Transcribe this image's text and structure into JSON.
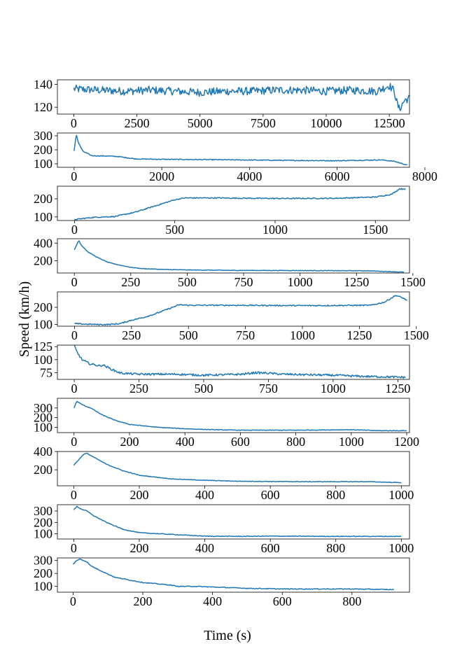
{
  "figure": {
    "xlabel": "Time (s)",
    "ylabel": "Speed (km/h)",
    "line_color": "#1f77b4"
  },
  "chart_data": [
    {
      "type": "line",
      "xlim": [
        -650,
        13300
      ],
      "ylim": [
        114,
        144
      ],
      "xticks": [
        0,
        2500,
        5000,
        7500,
        10000,
        12500
      ],
      "yticks": [
        120,
        140
      ],
      "x": [
        0,
        1000,
        2000,
        3000,
        4000,
        5000,
        6000,
        7000,
        8000,
        9000,
        10000,
        11000,
        12000,
        12500,
        12700,
        12800,
        12900,
        13000,
        13100,
        13300
      ],
      "y": [
        136,
        135,
        134,
        135,
        134,
        133,
        134,
        134,
        135,
        135,
        134,
        135,
        134,
        139,
        134,
        124,
        118,
        122,
        126,
        128
      ],
      "noise": 3.5
    },
    {
      "type": "line",
      "xlim": [
        -380,
        7650
      ],
      "ylim": [
        75,
        320
      ],
      "xticks": [
        0,
        2000,
        4000,
        6000,
        8000
      ],
      "yticks": [
        100,
        200,
        300
      ],
      "x": [
        0,
        50,
        100,
        200,
        400,
        800,
        1000,
        1400,
        2000,
        3000,
        4000,
        5000,
        6000,
        7000,
        7300,
        7500,
        7600
      ],
      "y": [
        190,
        310,
        250,
        190,
        158,
        155,
        152,
        135,
        132,
        130,
        127,
        124,
        122,
        128,
        118,
        100,
        90
      ],
      "noise": 3
    },
    {
      "type": "line",
      "xlim": [
        -85,
        1670
      ],
      "ylim": [
        80,
        270
      ],
      "xticks": [
        0,
        500,
        1000,
        1500
      ],
      "yticks": [
        100,
        200
      ],
      "x": [
        0,
        50,
        100,
        200,
        300,
        400,
        500,
        550,
        700,
        1000,
        1300,
        1500,
        1580,
        1620,
        1650
      ],
      "y": [
        85,
        92,
        98,
        102,
        125,
        160,
        195,
        205,
        205,
        202,
        203,
        210,
        225,
        255,
        255
      ],
      "noise": 3
    },
    {
      "type": "line",
      "xlim": [
        -75,
        1485
      ],
      "ylim": [
        60,
        450
      ],
      "xticks": [
        0,
        250,
        500,
        750,
        1000,
        1250,
        1500
      ],
      "yticks": [
        200,
        400
      ],
      "x": [
        0,
        10,
        20,
        30,
        60,
        100,
        150,
        200,
        250,
        300,
        400,
        500,
        700,
        1000,
        1300,
        1460
      ],
      "y": [
        320,
        380,
        430,
        380,
        300,
        240,
        180,
        150,
        125,
        110,
        100,
        95,
        90,
        88,
        85,
        70
      ],
      "noise": 3
    },
    {
      "type": "line",
      "xlim": [
        -75,
        1470
      ],
      "ylim": [
        90,
        290
      ],
      "xticks": [
        0,
        250,
        500,
        750,
        1000,
        1250,
        1500
      ],
      "yticks": [
        100,
        200
      ],
      "x": [
        0,
        50,
        100,
        150,
        200,
        250,
        300,
        350,
        400,
        460,
        500,
        700,
        1000,
        1300,
        1360,
        1410,
        1440,
        1460
      ],
      "y": [
        105,
        102,
        100,
        100,
        105,
        125,
        140,
        160,
        185,
        215,
        212,
        212,
        210,
        212,
        230,
        270,
        255,
        240
      ],
      "noise": 3.5
    },
    {
      "type": "line",
      "xlim": [
        -65,
        1295
      ],
      "ylim": [
        62,
        128
      ],
      "xticks": [
        0,
        250,
        500,
        750,
        1000,
        1250
      ],
      "yticks": [
        75,
        100,
        125
      ],
      "x": [
        0,
        10,
        30,
        60,
        100,
        110,
        150,
        180,
        250,
        400,
        500,
        650,
        700,
        750,
        800,
        1000,
        1100,
        1200,
        1280
      ],
      "y": [
        128,
        115,
        100,
        92,
        88,
        90,
        80,
        74,
        72,
        72,
        70,
        72,
        75,
        74,
        72,
        70,
        68,
        67,
        66
      ],
      "noise": 2
    },
    {
      "type": "line",
      "xlim": [
        -60,
        1210
      ],
      "ylim": [
        45,
        400
      ],
      "xticks": [
        0,
        200,
        400,
        600,
        800,
        1000,
        1200
      ],
      "yticks": [
        100,
        200,
        300
      ],
      "x": [
        0,
        10,
        20,
        40,
        60,
        100,
        150,
        200,
        300,
        400,
        500,
        600,
        800,
        1000,
        1100,
        1200
      ],
      "y": [
        300,
        370,
        350,
        320,
        300,
        230,
        170,
        130,
        100,
        85,
        75,
        70,
        70,
        75,
        65,
        65
      ],
      "noise": 3
    },
    {
      "type": "line",
      "xlim": [
        -50,
        1025
      ],
      "ylim": [
        25,
        400
      ],
      "xticks": [
        0,
        200,
        400,
        600,
        800,
        1000
      ],
      "yticks": [
        200,
        400
      ],
      "x": [
        0,
        10,
        20,
        30,
        40,
        60,
        100,
        150,
        200,
        300,
        400,
        500,
        700,
        900,
        1000
      ],
      "y": [
        250,
        290,
        330,
        370,
        380,
        340,
        260,
        190,
        140,
        100,
        85,
        75,
        70,
        70,
        60
      ],
      "noise": 3
    },
    {
      "type": "line",
      "xlim": [
        -50,
        1025
      ],
      "ylim": [
        55,
        355
      ],
      "xticks": [
        0,
        200,
        400,
        600,
        800,
        1000
      ],
      "yticks": [
        100,
        200,
        300
      ],
      "x": [
        0,
        10,
        20,
        40,
        60,
        100,
        150,
        200,
        300,
        400,
        500,
        600,
        800,
        1000
      ],
      "y": [
        310,
        340,
        320,
        300,
        260,
        200,
        140,
        110,
        95,
        80,
        78,
        80,
        78,
        78
      ],
      "noise": 3
    },
    {
      "type": "line",
      "xlim": [
        -45,
        965
      ],
      "ylim": [
        55,
        320
      ],
      "xticks": [
        0,
        200,
        400,
        600,
        800
      ],
      "yticks": [
        100,
        200,
        300
      ],
      "x": [
        0,
        10,
        20,
        40,
        50,
        80,
        120,
        200,
        280,
        300,
        350,
        400,
        500,
        600,
        800,
        920
      ],
      "y": [
        270,
        300,
        310,
        290,
        260,
        220,
        170,
        130,
        110,
        100,
        100,
        95,
        85,
        80,
        80,
        75
      ],
      "noise": 3
    }
  ]
}
